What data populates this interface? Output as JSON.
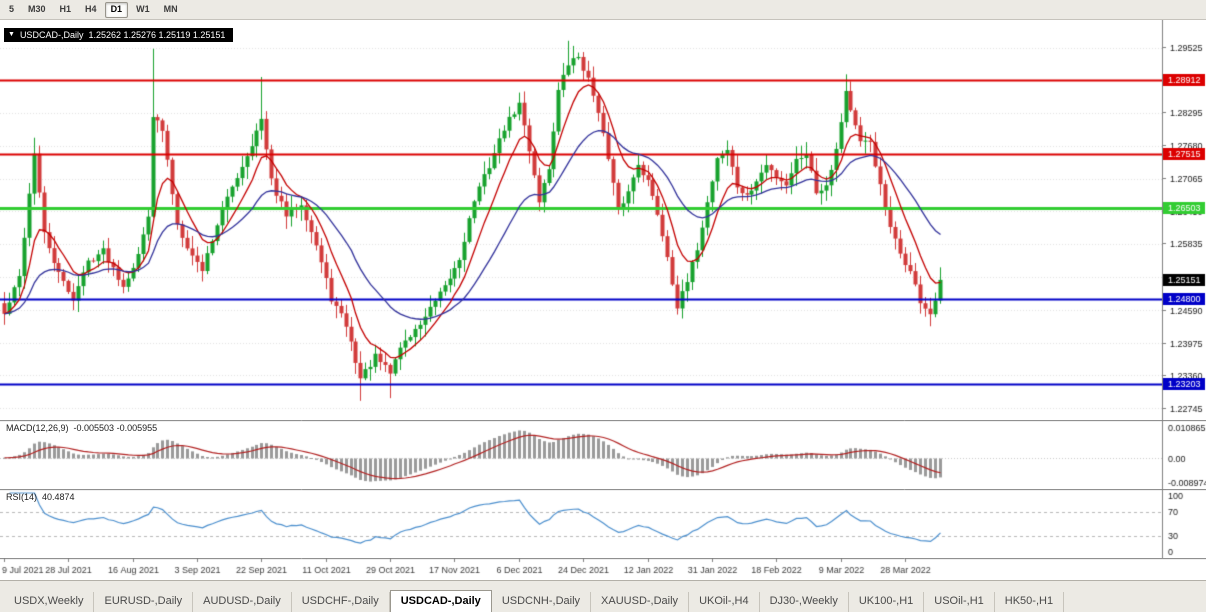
{
  "toolbar": {
    "timeframes": [
      {
        "label": "5",
        "active": false
      },
      {
        "label": "M30",
        "active": false
      },
      {
        "label": "H1",
        "active": false
      },
      {
        "label": "H4",
        "active": false
      },
      {
        "label": "D1",
        "active": true
      },
      {
        "label": "W1",
        "active": false
      },
      {
        "label": "MN",
        "active": false
      }
    ]
  },
  "chart": {
    "dropdown_icon": "▼",
    "title": "USDCAD-,Daily",
    "ohlc": "1.25262 1.25276 1.25119 1.25151"
  },
  "tabs": {
    "items": [
      {
        "label": "USDX,Weekly",
        "active": false
      },
      {
        "label": "EURUSD-,Daily",
        "active": false
      },
      {
        "label": "AUDUSD-,Daily",
        "active": false
      },
      {
        "label": "USDCHF-,Daily",
        "active": false
      },
      {
        "label": "USDCAD-,Daily",
        "active": true
      },
      {
        "label": "USDCNH-,Daily",
        "active": false
      },
      {
        "label": "XAUUSD-,Daily",
        "active": false
      },
      {
        "label": "UKOil-,H4",
        "active": false
      },
      {
        "label": "DJ30-,Weekly",
        "active": false
      },
      {
        "label": "UK100-,H1",
        "active": false
      },
      {
        "label": "USOil-,H1",
        "active": false
      },
      {
        "label": "HK50-,H1",
        "active": false
      }
    ]
  },
  "chart_data": {
    "type": "candlestick",
    "symbol": "USDCAD-",
    "timeframe": "Daily",
    "colors": {
      "up": "#18A22E",
      "down": "#D23B3B",
      "ma_fast": "#C40000",
      "ma_slow": "#32329B",
      "grid": "#E2E2E2",
      "separator": "#808080",
      "axis_text": "#1a1a1a",
      "time_text": "#3c3c3c"
    },
    "candle_count": 190,
    "tick_every": 13,
    "x_tick_labels": [
      "9 Jul 2021",
      "28 Jul 2021",
      "16 Aug 2021",
      "3 Sep 2021",
      "22 Sep 2021",
      "11 Oct 2021",
      "29 Oct 2021",
      "17 Nov 2021",
      "6 Dec 2021",
      "24 Dec 2021",
      "12 Jan 2022",
      "31 Jan 2022",
      "18 Feb 2022",
      "9 Mar 2022",
      "28 Mar 2022"
    ],
    "y_axis": {
      "top": 1.3003,
      "bottom": 1.2252,
      "grid_start": 1.22745,
      "grid_step": 0.00615,
      "tick_labels": [
        "1.29525",
        "1.28295",
        "1.27680",
        "1.27065",
        "1.26450",
        "1.25835",
        "1.24590",
        "1.23975",
        "1.23360",
        "1.22745"
      ]
    },
    "close_keyframes": [
      [
        0,
        1.245
      ],
      [
        3,
        1.252
      ],
      [
        6,
        1.2755
      ],
      [
        8,
        1.26
      ],
      [
        11,
        1.2525
      ],
      [
        14,
        1.248
      ],
      [
        17,
        1.255
      ],
      [
        20,
        1.257
      ],
      [
        24,
        1.2505
      ],
      [
        27,
        1.256
      ],
      [
        29,
        1.264
      ],
      [
        30,
        1.2825
      ],
      [
        32,
        1.2795
      ],
      [
        35,
        1.262
      ],
      [
        38,
        1.256
      ],
      [
        40,
        1.2535
      ],
      [
        43,
        1.262
      ],
      [
        46,
        1.269
      ],
      [
        49,
        1.275
      ],
      [
        52,
        1.2815
      ],
      [
        54,
        1.27
      ],
      [
        57,
        1.2635
      ],
      [
        60,
        1.266
      ],
      [
        63,
        1.258
      ],
      [
        66,
        1.248
      ],
      [
        69,
        1.243
      ],
      [
        72,
        1.233
      ],
      [
        75,
        1.237
      ],
      [
        78,
        1.234
      ],
      [
        80,
        1.239
      ],
      [
        83,
        1.242
      ],
      [
        86,
        1.246
      ],
      [
        89,
        1.25
      ],
      [
        92,
        1.2555
      ],
      [
        95,
        1.2665
      ],
      [
        98,
        1.273
      ],
      [
        101,
        1.28
      ],
      [
        104,
        1.2845
      ],
      [
        106,
        1.276
      ],
      [
        108,
        1.2665
      ],
      [
        110,
        1.2725
      ],
      [
        112,
        1.287
      ],
      [
        114,
        1.292
      ],
      [
        116,
        1.2935
      ],
      [
        118,
        1.289
      ],
      [
        120,
        1.2835
      ],
      [
        122,
        1.274
      ],
      [
        124,
        1.2645
      ],
      [
        126,
        1.268
      ],
      [
        128,
        1.2735
      ],
      [
        130,
        1.27
      ],
      [
        132,
        1.264
      ],
      [
        134,
        1.256
      ],
      [
        136,
        1.2465
      ],
      [
        138,
        1.251
      ],
      [
        140,
        1.2575
      ],
      [
        142,
        1.266
      ],
      [
        144,
        1.2745
      ],
      [
        146,
        1.276
      ],
      [
        148,
        1.269
      ],
      [
        150,
        1.267
      ],
      [
        152,
        1.27
      ],
      [
        154,
        1.273
      ],
      [
        156,
        1.271
      ],
      [
        158,
        1.2695
      ],
      [
        160,
        1.274
      ],
      [
        162,
        1.2755
      ],
      [
        164,
        1.268
      ],
      [
        166,
        1.2695
      ],
      [
        168,
        1.276
      ],
      [
        170,
        1.287
      ],
      [
        171,
        1.2835
      ],
      [
        173,
        1.277
      ],
      [
        175,
        1.2775
      ],
      [
        177,
        1.269
      ],
      [
        179,
        1.261
      ],
      [
        181,
        1.2565
      ],
      [
        183,
        1.253
      ],
      [
        185,
        1.2475
      ],
      [
        187,
        1.245
      ],
      [
        188,
        1.247
      ],
      [
        189,
        1.25151
      ]
    ],
    "wick_spikes": [
      {
        "i": 6,
        "h": 1.2782
      },
      {
        "i": 30,
        "h": 1.2949
      },
      {
        "i": 52,
        "h": 1.2896
      },
      {
        "i": 114,
        "h": 1.2964
      },
      {
        "i": 170,
        "h": 1.2901
      },
      {
        "i": 72,
        "l": 1.2288
      },
      {
        "i": 78,
        "l": 1.2293
      },
      {
        "i": 136,
        "l": 1.245
      },
      {
        "i": 187,
        "l": 1.2428
      }
    ],
    "hlines": [
      {
        "price": 1.28912,
        "label": "1.28912",
        "color": "#DC0000",
        "width": 2
      },
      {
        "price": 1.27515,
        "label": "1.27515",
        "color": "#DC0000",
        "width": 2
      },
      {
        "price": 1.26503,
        "label": "1.26503",
        "color": "#32CD32",
        "width": 3
      },
      {
        "price": 1.248,
        "label": "1.24800",
        "color": "#0000C8",
        "width": 2
      },
      {
        "price": 1.23203,
        "label": "1.23203",
        "color": "#0000C8",
        "width": 2
      }
    ],
    "current_price": {
      "value": 1.25151,
      "label": "1.25151",
      "badge_color": "#000000"
    },
    "moving_averages": [
      {
        "type": "ema",
        "period": 8,
        "color": "#C40000"
      },
      {
        "type": "ema",
        "period": 24,
        "color": "#32329B"
      }
    ],
    "indicators": {
      "macd": {
        "label": "MACD(12,26,9)",
        "current": "-0.005503 -0.005955",
        "fast": 12,
        "slow": 26,
        "signal": 9,
        "axis_max": 0.010865,
        "axis_min": -0.008974,
        "axis_labels": [
          "0.010865",
          "0.00",
          "-0.008974"
        ],
        "histogram_color": "#9A9A9A",
        "signal_color": "#B22222"
      },
      "rsi": {
        "label": "RSI(14)",
        "current": "40.4874",
        "period": 14,
        "axis_labels": [
          "100",
          "70",
          "30",
          "0"
        ],
        "levels": [
          70,
          30
        ],
        "line_color": "#4B8FCE"
      }
    }
  }
}
